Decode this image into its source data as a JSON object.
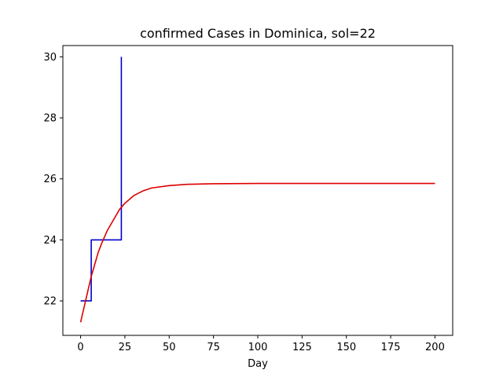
{
  "chart_data": {
    "type": "line",
    "title": "confirmed Cases in Dominica, sol=22",
    "xlabel": "Day",
    "ylabel": "",
    "xlim": [
      -10,
      210
    ],
    "ylim": [
      20.87,
      30.37
    ],
    "xticks": [
      0,
      25,
      50,
      75,
      100,
      125,
      150,
      175,
      200
    ],
    "xtick_labels": [
      "0",
      "25",
      "50",
      "75",
      "100",
      "125",
      "150",
      "175",
      "200"
    ],
    "yticks": [
      22,
      24,
      26,
      28,
      30
    ],
    "ytick_labels": [
      "22",
      "24",
      "26",
      "28",
      "30"
    ],
    "grid": false,
    "legend": "none",
    "series": [
      {
        "color": "#0000cc",
        "style": "step-post",
        "x": [
          0,
          5,
          6,
          22,
          23
        ],
        "y": [
          22,
          22,
          24,
          24,
          30
        ]
      },
      {
        "color": "#dd0000",
        "style": "line",
        "x": [
          0,
          2,
          4,
          6,
          8,
          10,
          12,
          15,
          18,
          20,
          22,
          25,
          30,
          35,
          40,
          50,
          60,
          75,
          100,
          150,
          200
        ],
        "y": [
          21.3,
          21.8,
          22.3,
          22.8,
          23.2,
          23.6,
          23.9,
          24.3,
          24.6,
          24.8,
          25.0,
          25.2,
          25.45,
          25.6,
          25.7,
          25.78,
          25.82,
          25.84,
          25.85,
          25.85,
          25.85
        ]
      }
    ]
  }
}
